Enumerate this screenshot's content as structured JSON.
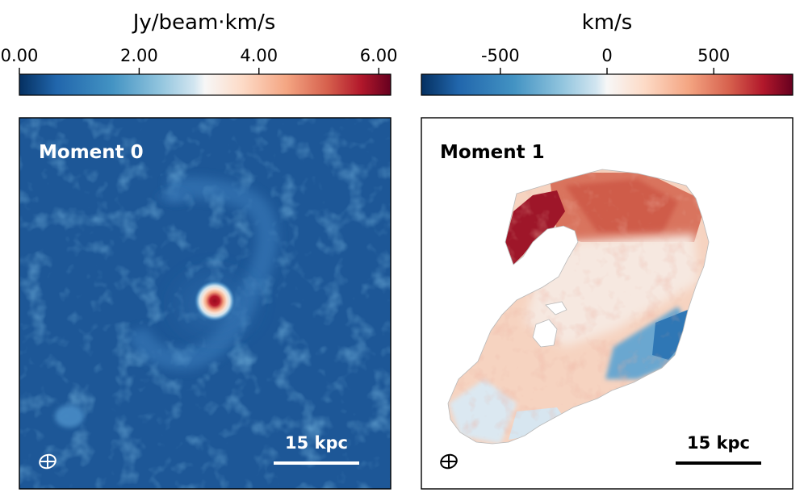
{
  "chart_data": [
    {
      "type": "heatmap",
      "panel_label": "Moment 0",
      "quantity": "integrated intensity",
      "colorbar": {
        "label": "Jy/beam·km/s",
        "ticks": [
          0.0,
          2.0,
          4.0,
          6.0
        ],
        "tick_labels": [
          "0.00",
          "2.00",
          "4.00",
          "6.00"
        ],
        "range": [
          0.0,
          6.2
        ],
        "colormap": "RdBu_r"
      },
      "features": [
        {
          "name": "central compact source",
          "peak_value": 6.0
        },
        {
          "name": "faint arc",
          "value": 1.0
        },
        {
          "name": "lower-left blob",
          "value": 1.1
        }
      ],
      "scale_bar": "15 kpc",
      "beam_marker": true
    },
    {
      "type": "heatmap",
      "panel_label": "Moment 1",
      "quantity": "velocity",
      "colorbar": {
        "label": "km/s",
        "ticks": [
          -500,
          0,
          500
        ],
        "tick_labels": [
          "-500",
          "0",
          "500"
        ],
        "range": [
          -870,
          870
        ],
        "colormap": "RdBu_r"
      },
      "features": [
        {
          "name": "northern arm",
          "velocity": 800
        },
        {
          "name": "upper body",
          "velocity": 420
        },
        {
          "name": "central region",
          "velocity": 150
        },
        {
          "name": "eastern edge",
          "velocity": -420
        },
        {
          "name": "southern tip",
          "velocity": -120
        }
      ],
      "scale_bar": "15 kpc",
      "beam_marker": true
    }
  ],
  "colors": {
    "low": "#0d3f7a",
    "mid": "#f7f7f7",
    "high": "#8f0c20",
    "text_dark": "#000000",
    "text_light": "#ffffff"
  }
}
